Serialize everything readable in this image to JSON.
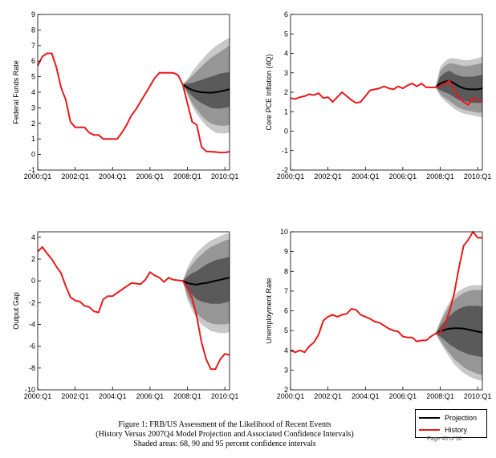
{
  "figure": {
    "caption_lines": [
      "Figure 1: FRB/US Assessment of the Likelihood of Recent Events",
      "(History Versus 2007Q4 Model Projection and Associated Confidence Intervals)",
      "Shaded areas: 68, 90 and 95 percent confidence intervals"
    ],
    "legend": {
      "projection": "Projection",
      "history": "History"
    },
    "page_note": "Page 40 of 50"
  },
  "colors": {
    "history": "#e8191b",
    "projection": "#000000",
    "band95": "#c8c8c8",
    "band90": "#969696",
    "band68": "#5a5a5a"
  },
  "chart_data": [
    {
      "type": "line",
      "ylabel": "Federal Funds Rate",
      "ylim": [
        -1,
        9
      ],
      "yticks": [
        -1,
        0,
        1,
        2,
        3,
        4,
        5,
        6,
        7,
        8,
        9
      ],
      "xlim": [
        2000.0,
        2010.25
      ],
      "xticks": [
        2000,
        2002,
        2004,
        2006,
        2008,
        2010
      ],
      "xtick_labels": [
        "2000:Q1",
        "2002:Q1",
        "2004:Q1",
        "2006:Q1",
        "2008:Q1",
        "2010:Q1"
      ],
      "history": {
        "x": [
          2000.0,
          2000.25,
          2000.5,
          2000.75,
          2001.0,
          2001.25,
          2001.5,
          2001.75,
          2002.0,
          2002.25,
          2002.5,
          2002.75,
          2003.0,
          2003.25,
          2003.5,
          2003.75,
          2004.0,
          2004.25,
          2004.5,
          2004.75,
          2005.0,
          2005.25,
          2005.5,
          2005.75,
          2006.0,
          2006.25,
          2006.5,
          2006.75,
          2007.0,
          2007.25,
          2007.5,
          2007.75,
          2008.0,
          2008.25,
          2008.5,
          2008.75,
          2009.0,
          2009.25,
          2009.5,
          2009.75,
          2010.0,
          2010.25
        ],
        "y": [
          5.7,
          6.3,
          6.5,
          6.5,
          5.6,
          4.3,
          3.5,
          2.1,
          1.75,
          1.75,
          1.75,
          1.4,
          1.25,
          1.25,
          1.0,
          1.0,
          1.0,
          1.0,
          1.4,
          1.9,
          2.5,
          2.9,
          3.4,
          3.9,
          4.4,
          4.9,
          5.25,
          5.25,
          5.25,
          5.25,
          5.1,
          4.5,
          3.3,
          2.1,
          1.9,
          0.5,
          0.2,
          0.18,
          0.16,
          0.12,
          0.13,
          0.18
        ]
      },
      "projection": {
        "x": [
          2007.75,
          2008.0,
          2008.25,
          2008.5,
          2008.75,
          2009.0,
          2009.25,
          2009.5,
          2009.75,
          2010.0,
          2010.25
        ],
        "y": [
          4.5,
          4.3,
          4.15,
          4.05,
          4.0,
          3.98,
          3.97,
          4.0,
          4.05,
          4.12,
          4.2
        ],
        "band68": [
          [
            4.5,
            4.5
          ],
          [
            4.1,
            4.55
          ],
          [
            3.75,
            4.6
          ],
          [
            3.5,
            4.7
          ],
          [
            3.3,
            4.8
          ],
          [
            3.15,
            4.9
          ],
          [
            3.0,
            5.0
          ],
          [
            2.95,
            5.1
          ],
          [
            2.95,
            5.2
          ],
          [
            3.0,
            5.25
          ],
          [
            3.05,
            5.3
          ]
        ],
        "band90": [
          [
            4.5,
            4.5
          ],
          [
            3.9,
            4.75
          ],
          [
            3.3,
            5.05
          ],
          [
            2.9,
            5.35
          ],
          [
            2.5,
            5.65
          ],
          [
            2.2,
            5.95
          ],
          [
            2.0,
            6.2
          ],
          [
            1.9,
            6.4
          ],
          [
            1.85,
            6.6
          ],
          [
            1.85,
            6.8
          ],
          [
            1.9,
            7.0
          ]
        ],
        "band95": [
          [
            4.5,
            4.5
          ],
          [
            3.8,
            4.85
          ],
          [
            3.1,
            5.3
          ],
          [
            2.6,
            5.7
          ],
          [
            2.2,
            6.05
          ],
          [
            1.85,
            6.4
          ],
          [
            1.6,
            6.7
          ],
          [
            1.4,
            6.95
          ],
          [
            1.35,
            7.15
          ],
          [
            1.35,
            7.35
          ],
          [
            1.4,
            7.5
          ]
        ]
      }
    },
    {
      "type": "line",
      "ylabel": "Core PCE Inflation (4Q)",
      "ylim": [
        -2,
        6
      ],
      "yticks": [
        -2,
        -1,
        0,
        1,
        2,
        3,
        4,
        5,
        6
      ],
      "xlim": [
        2000.0,
        2010.25
      ],
      "xticks": [
        2000,
        2002,
        2004,
        2006,
        2008,
        2010
      ],
      "xtick_labels": [
        "2000:Q1",
        "2002:Q1",
        "2004:Q1",
        "2006:Q1",
        "2008:Q1",
        "2010:Q1"
      ],
      "history": {
        "x": [
          2000.0,
          2000.25,
          2000.5,
          2000.75,
          2001.0,
          2001.25,
          2001.5,
          2001.75,
          2002.0,
          2002.25,
          2002.5,
          2002.75,
          2003.0,
          2003.25,
          2003.5,
          2003.75,
          2004.0,
          2004.25,
          2004.5,
          2004.75,
          2005.0,
          2005.25,
          2005.5,
          2005.75,
          2006.0,
          2006.25,
          2006.5,
          2006.75,
          2007.0,
          2007.25,
          2007.5,
          2007.75,
          2008.0,
          2008.25,
          2008.5,
          2008.75,
          2009.0,
          2009.25,
          2009.5,
          2009.75,
          2010.0,
          2010.25
        ],
        "y": [
          1.7,
          1.65,
          1.75,
          1.8,
          1.9,
          1.85,
          1.95,
          1.7,
          1.75,
          1.5,
          1.75,
          2.0,
          1.8,
          1.6,
          1.45,
          1.5,
          1.8,
          2.1,
          2.15,
          2.2,
          2.3,
          2.2,
          2.15,
          2.3,
          2.2,
          2.35,
          2.45,
          2.3,
          2.45,
          2.25,
          2.25,
          2.25,
          2.3,
          2.45,
          2.6,
          2.1,
          1.75,
          1.5,
          1.35,
          1.7,
          1.6,
          1.55
        ]
      },
      "projection": {
        "x": [
          2007.75,
          2008.0,
          2008.25,
          2008.5,
          2008.75,
          2009.0,
          2009.25,
          2009.5,
          2009.75,
          2010.0,
          2010.25
        ],
        "y": [
          2.25,
          2.45,
          2.55,
          2.6,
          2.45,
          2.3,
          2.2,
          2.15,
          2.15,
          2.15,
          2.2
        ],
        "band68": [
          [
            2.25,
            2.25
          ],
          [
            2.1,
            2.8
          ],
          [
            2.0,
            3.0
          ],
          [
            1.9,
            3.1
          ],
          [
            1.75,
            2.95
          ],
          [
            1.6,
            2.85
          ],
          [
            1.55,
            2.8
          ],
          [
            1.5,
            2.8
          ],
          [
            1.45,
            2.8
          ],
          [
            1.45,
            2.85
          ],
          [
            1.45,
            2.9
          ]
        ],
        "band90": [
          [
            2.25,
            2.25
          ],
          [
            1.9,
            3.1
          ],
          [
            1.7,
            3.35
          ],
          [
            1.55,
            3.5
          ],
          [
            1.35,
            3.45
          ],
          [
            1.2,
            3.4
          ],
          [
            1.1,
            3.35
          ],
          [
            1.05,
            3.35
          ],
          [
            1.0,
            3.4
          ],
          [
            0.95,
            3.45
          ],
          [
            0.95,
            3.5
          ]
        ],
        "band95": [
          [
            2.25,
            2.25
          ],
          [
            1.8,
            3.3
          ],
          [
            1.55,
            3.6
          ],
          [
            1.35,
            3.75
          ],
          [
            1.15,
            3.75
          ],
          [
            1.0,
            3.7
          ],
          [
            0.9,
            3.65
          ],
          [
            0.85,
            3.65
          ],
          [
            0.8,
            3.7
          ],
          [
            0.75,
            3.75
          ],
          [
            0.7,
            3.85
          ]
        ]
      }
    },
    {
      "type": "line",
      "ylabel": "Output Gap",
      "ylim": [
        -10,
        4.5
      ],
      "yticks": [
        -10,
        -8,
        -6,
        -4,
        -2,
        0,
        2,
        4
      ],
      "xlim": [
        2000.0,
        2010.25
      ],
      "xticks": [
        2000,
        2002,
        2004,
        2006,
        2008,
        2010
      ],
      "xtick_labels": [
        "2000:Q1",
        "2002:Q1",
        "2004:Q1",
        "2006:Q1",
        "2008:Q1",
        "2010:Q1"
      ],
      "history": {
        "x": [
          2000.0,
          2000.25,
          2000.5,
          2000.75,
          2001.0,
          2001.25,
          2001.5,
          2001.75,
          2002.0,
          2002.25,
          2002.5,
          2002.75,
          2003.0,
          2003.25,
          2003.5,
          2003.75,
          2004.0,
          2004.25,
          2004.5,
          2004.75,
          2005.0,
          2005.25,
          2005.5,
          2005.75,
          2006.0,
          2006.25,
          2006.5,
          2006.75,
          2007.0,
          2007.25,
          2007.5,
          2007.75,
          2008.0,
          2008.25,
          2008.5,
          2008.75,
          2009.0,
          2009.25,
          2009.5,
          2009.75,
          2010.0,
          2010.25
        ],
        "y": [
          2.7,
          3.1,
          2.5,
          2.0,
          1.3,
          0.7,
          -0.5,
          -1.5,
          -1.8,
          -1.9,
          -2.3,
          -2.4,
          -2.8,
          -2.9,
          -1.7,
          -1.4,
          -1.4,
          -1.1,
          -0.8,
          -0.5,
          -0.2,
          -0.25,
          -0.3,
          0.1,
          0.8,
          0.5,
          0.3,
          -0.1,
          0.3,
          0.1,
          0.05,
          0.0,
          -0.7,
          -1.6,
          -3.3,
          -5.6,
          -7.2,
          -8.1,
          -8.1,
          -7.2,
          -6.7,
          -6.8
        ]
      },
      "projection": {
        "x": [
          2007.75,
          2008.0,
          2008.25,
          2008.5,
          2008.75,
          2009.0,
          2009.25,
          2009.5,
          2009.75,
          2010.0,
          2010.25
        ],
        "y": [
          0.0,
          -0.2,
          -0.3,
          -0.35,
          -0.25,
          -0.2,
          -0.1,
          0.0,
          0.1,
          0.2,
          0.3
        ],
        "band68": [
          [
            0.0,
            0.0
          ],
          [
            -0.8,
            0.4
          ],
          [
            -1.3,
            0.7
          ],
          [
            -1.7,
            0.9
          ],
          [
            -1.9,
            1.2
          ],
          [
            -2.0,
            1.5
          ],
          [
            -2.1,
            1.7
          ],
          [
            -2.1,
            1.9
          ],
          [
            -2.1,
            2.0
          ],
          [
            -2.0,
            2.1
          ],
          [
            -1.9,
            2.2
          ]
        ],
        "band90": [
          [
            0.0,
            0.0
          ],
          [
            -1.4,
            0.9
          ],
          [
            -2.3,
            1.5
          ],
          [
            -3.0,
            2.0
          ],
          [
            -3.4,
            2.4
          ],
          [
            -3.7,
            2.8
          ],
          [
            -3.9,
            3.1
          ],
          [
            -4.0,
            3.3
          ],
          [
            -4.0,
            3.5
          ],
          [
            -4.0,
            3.7
          ],
          [
            -3.9,
            3.8
          ]
        ],
        "band95": [
          [
            0.0,
            0.0
          ],
          [
            -1.7,
            1.2
          ],
          [
            -2.7,
            2.0
          ],
          [
            -3.5,
            2.6
          ],
          [
            -4.0,
            3.0
          ],
          [
            -4.3,
            3.4
          ],
          [
            -4.6,
            3.7
          ],
          [
            -4.7,
            3.9
          ],
          [
            -4.8,
            4.1
          ],
          [
            -4.8,
            4.3
          ],
          [
            -4.7,
            4.4
          ]
        ]
      }
    },
    {
      "type": "line",
      "ylabel": "Unemployment Rate",
      "ylim": [
        2,
        10
      ],
      "yticks": [
        2,
        3,
        4,
        5,
        6,
        7,
        8,
        9,
        10
      ],
      "xlim": [
        2000.0,
        2010.25
      ],
      "xticks": [
        2000,
        2002,
        2004,
        2006,
        2008,
        2010
      ],
      "xtick_labels": [
        "2000:Q1",
        "2002:Q1",
        "2004:Q1",
        "2006:Q1",
        "2008:Q1",
        "2010:Q1"
      ],
      "history": {
        "x": [
          2000.0,
          2000.25,
          2000.5,
          2000.75,
          2001.0,
          2001.25,
          2001.5,
          2001.75,
          2002.0,
          2002.25,
          2002.5,
          2002.75,
          2003.0,
          2003.25,
          2003.5,
          2003.75,
          2004.0,
          2004.25,
          2004.5,
          2004.75,
          2005.0,
          2005.25,
          2005.5,
          2005.75,
          2006.0,
          2006.25,
          2006.5,
          2006.75,
          2007.0,
          2007.25,
          2007.5,
          2007.75,
          2008.0,
          2008.25,
          2008.5,
          2008.75,
          2009.0,
          2009.25,
          2009.5,
          2009.75,
          2010.0,
          2010.25
        ],
        "y": [
          4.0,
          3.9,
          4.0,
          3.9,
          4.2,
          4.4,
          4.8,
          5.5,
          5.7,
          5.8,
          5.7,
          5.8,
          5.85,
          6.1,
          6.05,
          5.8,
          5.7,
          5.6,
          5.45,
          5.4,
          5.25,
          5.1,
          5.0,
          4.95,
          4.7,
          4.65,
          4.65,
          4.45,
          4.5,
          4.5,
          4.7,
          4.85,
          4.9,
          5.3,
          6.0,
          6.9,
          8.2,
          9.3,
          9.6,
          10.0,
          9.7,
          9.7
        ]
      },
      "projection": {
        "x": [
          2007.75,
          2008.0,
          2008.25,
          2008.5,
          2008.75,
          2009.0,
          2009.25,
          2009.5,
          2009.75,
          2010.0,
          2010.25
        ],
        "y": [
          4.85,
          4.95,
          5.05,
          5.1,
          5.12,
          5.12,
          5.1,
          5.05,
          5.0,
          4.95,
          4.9
        ],
        "band68": [
          [
            4.85,
            4.85
          ],
          [
            4.7,
            5.2
          ],
          [
            4.5,
            5.5
          ],
          [
            4.3,
            5.75
          ],
          [
            4.15,
            5.95
          ],
          [
            4.0,
            6.1
          ],
          [
            3.9,
            6.2
          ],
          [
            3.8,
            6.25
          ],
          [
            3.75,
            6.25
          ],
          [
            3.7,
            6.25
          ],
          [
            3.65,
            6.2
          ]
        ],
        "band90": [
          [
            4.85,
            4.85
          ],
          [
            4.5,
            5.4
          ],
          [
            4.15,
            5.85
          ],
          [
            3.85,
            6.25
          ],
          [
            3.55,
            6.55
          ],
          [
            3.35,
            6.75
          ],
          [
            3.15,
            6.9
          ],
          [
            3.0,
            7.0
          ],
          [
            2.9,
            7.05
          ],
          [
            2.8,
            7.05
          ],
          [
            2.75,
            7.05
          ]
        ],
        "band95": [
          [
            4.85,
            4.85
          ],
          [
            4.4,
            5.5
          ],
          [
            4.0,
            6.05
          ],
          [
            3.65,
            6.45
          ],
          [
            3.3,
            6.8
          ],
          [
            3.05,
            7.0
          ],
          [
            2.85,
            7.15
          ],
          [
            2.7,
            7.25
          ],
          [
            2.6,
            7.3
          ],
          [
            2.5,
            7.3
          ],
          [
            2.45,
            7.3
          ]
        ]
      }
    }
  ]
}
